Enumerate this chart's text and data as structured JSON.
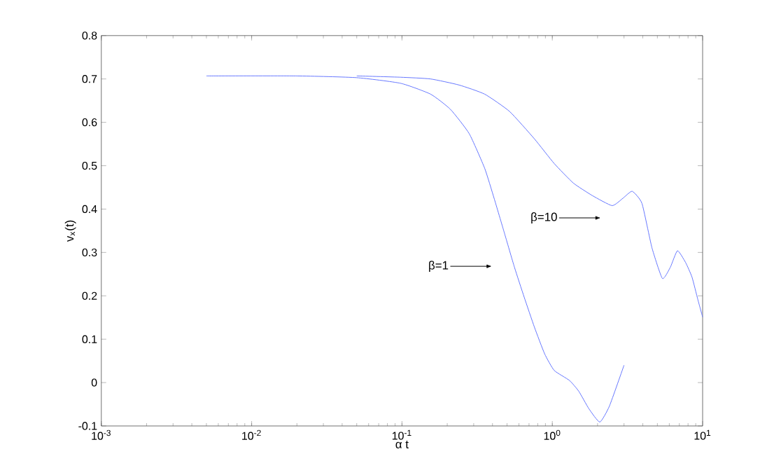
{
  "chart_data": {
    "type": "line",
    "xlabel": "α t",
    "ylabel": "v$_{x}$(t)",
    "log": "x",
    "xlim": [
      0.001,
      10
    ],
    "ylim": [
      -0.1,
      0.8
    ],
    "xticks": [
      {
        "value": 0.001,
        "label": "10$^{-3}$"
      },
      {
        "value": 0.01,
        "label": "10$^{-2}$"
      },
      {
        "value": 0.1,
        "label": "10$^{-1}$"
      },
      {
        "value": 1,
        "label": "10$^{0}$"
      },
      {
        "value": 10,
        "label": "10$^{1}$"
      }
    ],
    "yticks": [
      -0.1,
      0,
      0.1,
      0.2,
      0.3,
      0.4,
      0.5,
      0.6,
      0.7,
      0.8
    ],
    "grid": false,
    "marker": "none",
    "line_style": "solid",
    "series": [
      {
        "color": "#6677ff",
        "x": [
          0.005,
          0.02,
          0.05,
          0.098,
          0.155,
          0.21,
          0.28,
          0.355,
          0.41,
          0.48,
          0.56,
          0.65,
          0.76,
          0.89,
          1.03,
          1.3,
          1.5,
          1.75,
          2.07,
          2.4,
          3.0
        ],
        "values": [
          0.707,
          0.707,
          0.703,
          0.69,
          0.665,
          0.63,
          0.574,
          0.494,
          0.425,
          0.345,
          0.266,
          0.197,
          0.128,
          0.066,
          0.028,
          0.005,
          -0.02,
          -0.06,
          -0.091,
          -0.054,
          0.04
        ]
      },
      {
        "color": "#6677ff",
        "x": [
          0.05,
          0.098,
          0.155,
          0.24,
          0.355,
          0.52,
          0.76,
          1.03,
          1.38,
          1.85,
          2.5,
          2.95,
          3.4,
          3.95,
          4.6,
          5.4,
          6.1,
          6.8,
          7.7,
          8.5,
          9.3,
          10
        ],
        "values": [
          0.707,
          0.704,
          0.7,
          0.686,
          0.665,
          0.625,
          0.562,
          0.505,
          0.46,
          0.431,
          0.408,
          0.425,
          0.441,
          0.413,
          0.311,
          0.24,
          0.266,
          0.304,
          0.277,
          0.243,
          0.191,
          0.151
        ]
      }
    ],
    "annotations": [
      "β=1",
      "β=10"
    ]
  }
}
